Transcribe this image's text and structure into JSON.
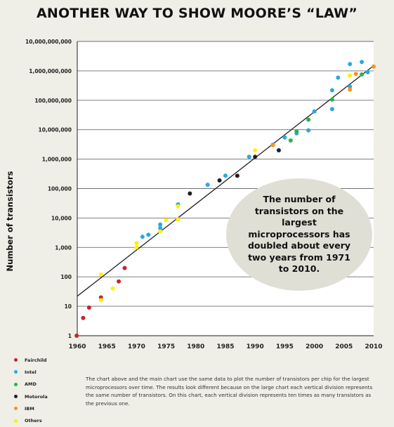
{
  "title": "ANOTHER WAY TO SHOW MOORE’S “LAW”",
  "note": "The number of transistors on the largest microprocessors has doubled about every two years from 1971 to 2010.",
  "caption": "The chart above and the main chart use the same data to plot the number of transistors per chip for the largest microprocessors over time. The results look different because on the large chart each vertical division represents the same number of transistors. On this chart, each vertical division represents ten times as many transistors as the previous one.",
  "legend": [
    {
      "name": "Fairchild",
      "color": "#c0272d"
    },
    {
      "name": "Intel",
      "color": "#27aae1"
    },
    {
      "name": "AMD",
      "color": "#2bb24c"
    },
    {
      "name": "Motorola",
      "color": "#231f20"
    },
    {
      "name": "IBM",
      "color": "#f7941d"
    },
    {
      "name": "Others",
      "color": "#fff200"
    }
  ],
  "chart_data": {
    "type": "scatter",
    "title": "ANOTHER WAY TO SHOW MOORE’S “LAW”",
    "xlabel": "",
    "ylabel": "Number of transistors",
    "xlim": [
      1960,
      2010
    ],
    "ylim": [
      1,
      10000000000
    ],
    "yscale": "log",
    "grid": true,
    "x_ticks": [
      "1960",
      "1965",
      "1970",
      "1975",
      "1980",
      "1985",
      "1990",
      "1995",
      "2000",
      "2005",
      "2010"
    ],
    "y_ticks": [
      "1",
      "10",
      "100",
      "1,000",
      "10,000",
      "100,000",
      "1,000,000",
      "10,000,000",
      "100,000,000",
      "1,000,000,000",
      "10,000,000,000"
    ],
    "trend_line": {
      "x": [
        1960,
        2010
      ],
      "y": [
        22,
        1500000000
      ]
    },
    "series": [
      {
        "name": "Fairchild",
        "color": "#c0272d",
        "x": [
          1959.9,
          1961,
          1962,
          1964,
          1967,
          1968
        ],
        "y": [
          1,
          4,
          9,
          20,
          70,
          200
        ]
      },
      {
        "name": "Intel",
        "color": "#27aae1",
        "x": [
          1971,
          1972,
          1974,
          1974,
          1977,
          1982,
          1985,
          1989,
          1993,
          1995,
          1997,
          1999,
          2000,
          2003,
          2003,
          2004,
          2006,
          2006,
          2008,
          2009
        ],
        "y": [
          2300,
          2700,
          4500,
          6000,
          29000,
          134000,
          275000,
          1200000,
          3100000,
          5500000,
          7500000,
          9500000,
          42000000,
          220000000,
          50000000,
          590000000,
          1700000000,
          291000000,
          2000000000,
          900000000
        ]
      },
      {
        "name": "AMD",
        "color": "#2bb24c",
        "x": [
          1996,
          1997,
          1999,
          2003,
          2008
        ],
        "y": [
          4300000,
          8800000,
          22000000,
          106000000,
          758000000
        ]
      },
      {
        "name": "Motorola",
        "color": "#231f20",
        "x": [
          1979,
          1984,
          1987,
          1990,
          1994
        ],
        "y": [
          68000,
          190000,
          273000,
          1200000,
          2000000
        ]
      },
      {
        "name": "IBM",
        "color": "#f7941d",
        "x": [
          1993,
          2006,
          2007,
          2010
        ],
        "y": [
          3000000,
          230000000,
          790000000,
          1400000000
        ]
      },
      {
        "name": "Others",
        "color": "#fff200",
        "x": [
          1964,
          1964,
          1966,
          1970,
          1970,
          1974,
          1975,
          1977,
          1977,
          1990,
          2006
        ],
        "y": [
          120,
          16,
          40,
          1000,
          1400,
          3500,
          8500,
          9000,
          25000,
          2000000,
          700000000
        ]
      }
    ]
  }
}
